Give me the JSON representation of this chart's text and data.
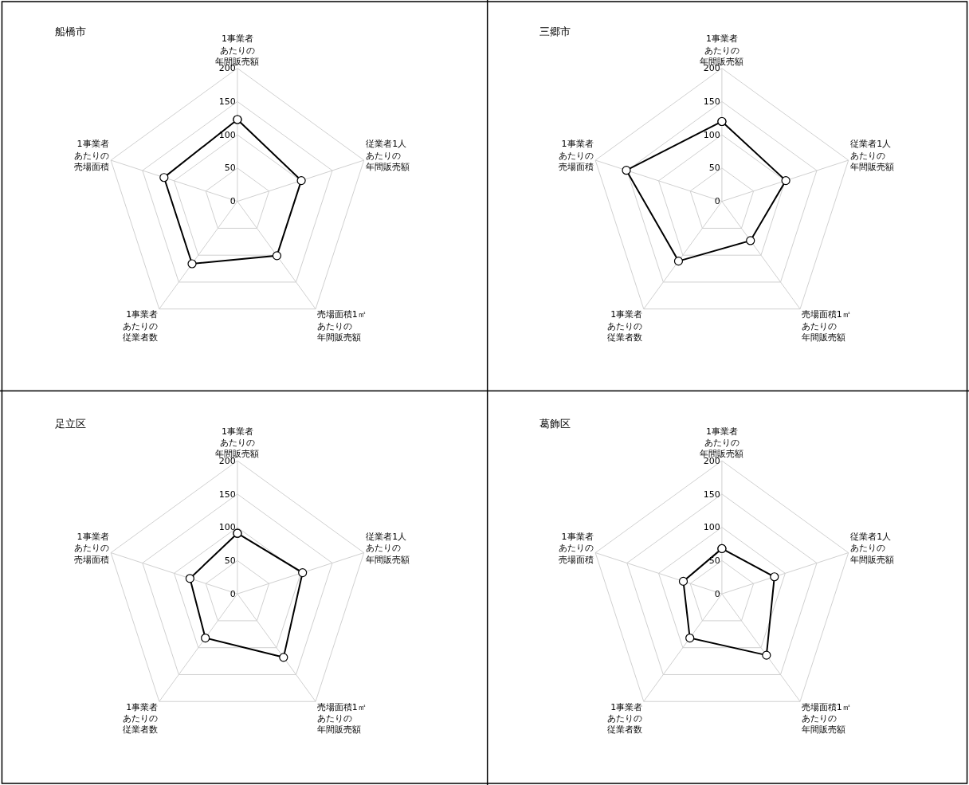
{
  "chart_data": [
    {
      "type": "radar",
      "title": "船橋市",
      "categories": [
        "1事業者あたりの年間販売額",
        "従業者1人あたりの年間販売額",
        "売場面積1㎡あたりの年間販売額",
        "1事業者あたりの従業者数",
        "1事業者あたりの売場面積"
      ],
      "series": [
        {
          "color": "#000000",
          "values": [
            123,
            101,
            101,
            116,
            116
          ]
        }
      ],
      "ylim": [
        0,
        200
      ],
      "yticks": [
        0,
        50,
        100,
        150,
        200
      ],
      "grid": true,
      "marker": "circle"
    },
    {
      "type": "radar",
      "title": "三郷市",
      "categories": [
        "1事業者あたりの年間販売額",
        "従業者1人あたりの年間販売額",
        "売場面積1㎡あたりの年間販売額",
        "1事業者あたりの従業者数",
        "1事業者あたりの売場面積"
      ],
      "series": [
        {
          "color": "#000000",
          "values": [
            120,
            101,
            73,
            111,
            151
          ]
        }
      ],
      "ylim": [
        0,
        200
      ],
      "yticks": [
        0,
        50,
        100,
        150,
        200
      ],
      "grid": true,
      "marker": "circle"
    },
    {
      "type": "radar",
      "title": "足立区",
      "categories": [
        "1事業者あたりの年間販売額",
        "従業者1人あたりの年間販売額",
        "売場面積1㎡あたりの年間販売額",
        "1事業者あたりの従業者数",
        "1事業者あたりの売場面積"
      ],
      "series": [
        {
          "color": "#000000",
          "values": [
            91,
            103,
            118,
            82,
            75
          ]
        }
      ],
      "ylim": [
        0,
        200
      ],
      "yticks": [
        0,
        50,
        100,
        150,
        200
      ],
      "grid": true,
      "marker": "circle"
    },
    {
      "type": "radar",
      "title": "葛飾区",
      "categories": [
        "1事業者あたりの年間販売額",
        "従業者1人あたりの年間販売額",
        "売場面積1㎡あたりの年間販売額",
        "1事業者あたりの従業者数",
        "1事業者あたりの売場面積"
      ],
      "series": [
        {
          "color": "#000000",
          "values": [
            68,
            83,
            114,
            82,
            61
          ]
        }
      ],
      "ylim": [
        0,
        200
      ],
      "yticks": [
        0,
        50,
        100,
        150,
        200
      ],
      "grid": true,
      "marker": "circle"
    }
  ]
}
